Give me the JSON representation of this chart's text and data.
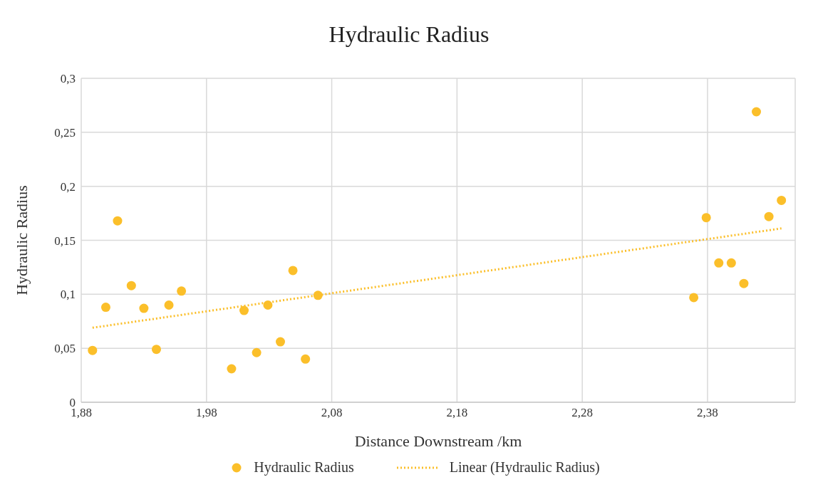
{
  "chart_data": {
    "type": "scatter",
    "title": "Hydraulic Radius",
    "xlabel": "Distance Downstream /km",
    "ylabel": "Hydraulic Radius",
    "xlim": [
      1.88,
      2.45
    ],
    "xticks": [
      {
        "value": 1.88,
        "label": "1,88"
      },
      {
        "value": 1.98,
        "label": "1,98"
      },
      {
        "value": 2.08,
        "label": "2,08"
      },
      {
        "value": 2.18,
        "label": "2,18"
      },
      {
        "value": 2.28,
        "label": "2,28"
      },
      {
        "value": 2.38,
        "label": "2,38"
      }
    ],
    "ylim": [
      0,
      0.3
    ],
    "yticks": [
      0,
      {
        "value": 0.05,
        "label": "0,05"
      },
      {
        "value": 0.1,
        "label": "0,1"
      },
      {
        "value": 0.15,
        "label": "0,15"
      },
      {
        "value": 0.2,
        "label": "0,2"
      },
      {
        "value": 0.25,
        "label": "0,25"
      },
      {
        "value": 0.3,
        "label": "0,3"
      }
    ],
    "grid": true,
    "legend": "bottom",
    "marker": "circle",
    "series": [
      {
        "name": "Hydraulic Radius",
        "color": "#fbbf2a",
        "x": [
          1.889,
          1.8996,
          1.909,
          1.92,
          1.93,
          1.94,
          1.95,
          1.96,
          2.0,
          2.01,
          2.02,
          2.029,
          2.039,
          2.049,
          2.059,
          2.069,
          2.369,
          2.379,
          2.389,
          2.399,
          2.409,
          2.419,
          2.429,
          2.439
        ],
        "values": [
          0.048,
          0.088,
          0.168,
          0.108,
          0.087,
          0.049,
          0.09,
          0.103,
          0.031,
          0.085,
          0.046,
          0.09,
          0.056,
          0.122,
          0.04,
          0.099,
          0.097,
          0.171,
          0.129,
          0.129,
          0.11,
          0.269,
          0.172,
          0.187
        ]
      },
      {
        "name": "Linear (Hydraulic Radius)",
        "color": "#fbbf2a",
        "type": "line",
        "line_style": "dotted",
        "marker": "none",
        "x": [
          1.889,
          2.439
        ],
        "values": [
          0.069,
          0.161
        ]
      }
    ]
  }
}
